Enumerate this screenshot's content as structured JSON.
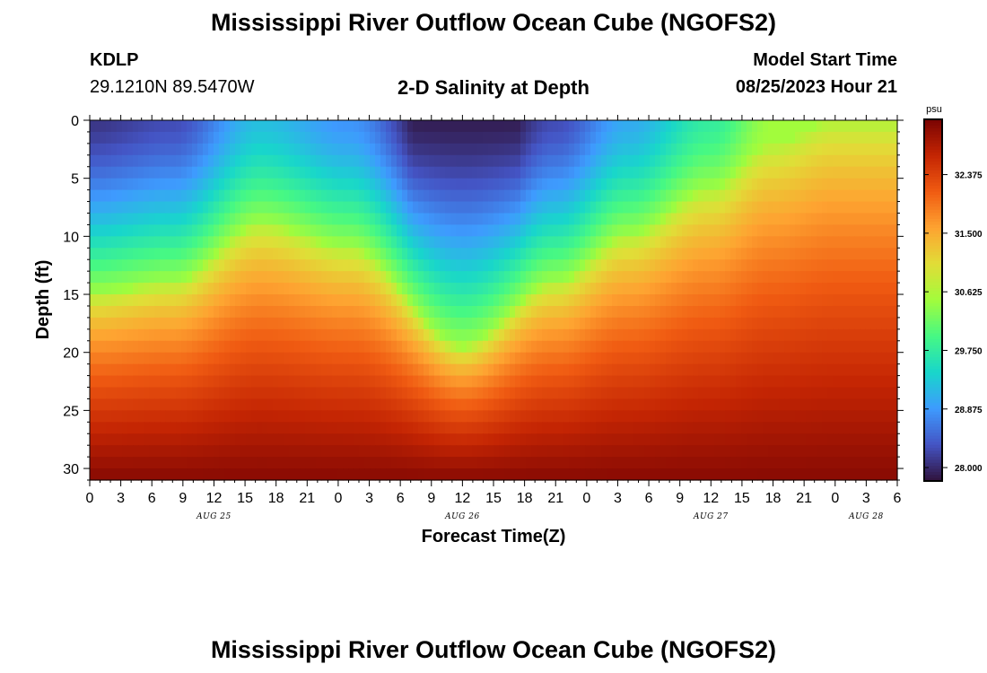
{
  "header": {
    "title": "Mississippi River Outflow Ocean Cube (NGOFS2)",
    "station": "KDLP",
    "coords": "29.1210N  89.5470W",
    "plot_title": "2-D Salinity at Depth",
    "model_start_label": "Model Start Time",
    "model_start_value": "08/25/2023 Hour 21"
  },
  "footer": {
    "title": "Mississippi River Outflow Ocean Cube (NGOFS2)"
  },
  "chart_data": {
    "type": "heatmap",
    "title": "2-D Salinity at Depth",
    "xlabel": "Forecast Time(Z)",
    "ylabel": "Depth (ft)",
    "x_tick_labels": [
      "0",
      "3",
      "6",
      "9",
      "12",
      "15",
      "18",
      "21",
      "0",
      "3",
      "6",
      "9",
      "12",
      "15",
      "18",
      "21",
      "0",
      "3",
      "6",
      "9",
      "12",
      "15",
      "18",
      "21",
      "0",
      "3",
      "6"
    ],
    "x_day_labels": [
      {
        "label": "AUG 25",
        "hour": 12
      },
      {
        "label": "AUG 26",
        "hour": 36
      },
      {
        "label": "AUG 27",
        "hour": 60
      },
      {
        "label": "AUG 28",
        "hour": 75
      }
    ],
    "xlim_hours": [
      0,
      78
    ],
    "y_ticks": [
      0,
      5,
      10,
      15,
      20,
      25,
      30
    ],
    "ylim": [
      0,
      31
    ],
    "colorbar": {
      "unit": "psu",
      "ticks": [
        "32.375",
        "31.500",
        "30.625",
        "29.750",
        "28.875",
        "28.000"
      ],
      "tick_values": [
        32.375,
        31.5,
        30.625,
        29.75,
        28.875,
        28.0
      ],
      "range": [
        27.8,
        33.2
      ],
      "colors": [
        "#30123b",
        "#4454c4",
        "#3e9bfe",
        "#18d6cb",
        "#46f884",
        "#a2fc3c",
        "#e1dd37",
        "#fea331",
        "#f05b12",
        "#c42503",
        "#7a0403"
      ]
    },
    "grid": false,
    "field_description": {
      "isohaline_30_5_depth_ft": [
        {
          "hour": 0,
          "depth": 15
        },
        {
          "hour": 8,
          "depth": 14
        },
        {
          "hour": 16.5,
          "depth": 9
        },
        {
          "hour": 25,
          "depth": 11
        },
        {
          "hour": 36,
          "depth": 19.5
        },
        {
          "hour": 45,
          "depth": 14
        },
        {
          "hour": 52,
          "depth": 10
        },
        {
          "hour": 60,
          "depth": 6
        },
        {
          "hour": 66,
          "depth": 2
        },
        {
          "hour": 72,
          "depth": 0
        },
        {
          "hour": 78,
          "depth": 0
        }
      ],
      "surface_fresh_min_psu": 27.9,
      "bottom_max_psu": 33.1
    }
  }
}
